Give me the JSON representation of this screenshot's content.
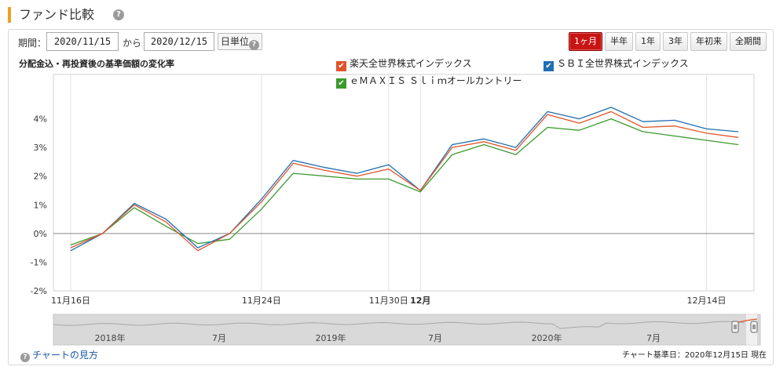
{
  "header": {
    "title": "ファンド比較",
    "help_icon": "?"
  },
  "controls": {
    "period_label": "期間：",
    "date_from": "2020/11/15",
    "separator": "から",
    "date_to": "2020/12/15",
    "unit_label": "日単位",
    "ranges": [
      {
        "label": "1ヶ月",
        "active": true
      },
      {
        "label": "半年",
        "active": false
      },
      {
        "label": "1年",
        "active": false
      },
      {
        "label": "3年",
        "active": false
      },
      {
        "label": "年初来",
        "active": false
      },
      {
        "label": "全期間",
        "active": false
      }
    ]
  },
  "chart_subtitle": "分配金込・再投資後の基準価額の変化率",
  "footer": {
    "help_link": "チャートの見方",
    "reference_date": "チャート基準日：2020年12月15日 現在"
  },
  "navigator": {
    "labels": [
      "2018年",
      "7月",
      "2019年",
      "7月",
      "2020年",
      "7月"
    ]
  },
  "chart_data": {
    "type": "line",
    "x": [
      "2020-11-16",
      "2020-11-17",
      "2020-11-18",
      "2020-11-19",
      "2020-11-20",
      "2020-11-23",
      "2020-11-24",
      "2020-11-25",
      "2020-11-26",
      "2020-11-27",
      "2020-11-30",
      "2020-12-01",
      "2020-12-02",
      "2020-12-03",
      "2020-12-04",
      "2020-12-07",
      "2020-12-08",
      "2020-12-09",
      "2020-12-10",
      "2020-12-11",
      "2020-12-14",
      "2020-12-15"
    ],
    "x_tick_labels": [
      "11月16日",
      "11月24日",
      "11月30日",
      "12月",
      "12月14日"
    ],
    "x_tick_bold": [
      false,
      false,
      false,
      true,
      false
    ],
    "ylim": [
      -2,
      5
    ],
    "y_tick_labels": [
      "-2%",
      "-1%",
      "0%",
      "1%",
      "2%",
      "3%",
      "4%"
    ],
    "y_tick_values": [
      -2,
      -1,
      0,
      1,
      2,
      3,
      4
    ],
    "series": [
      {
        "name": "楽天全世界株式インデックス",
        "color": "#e0542a",
        "values": [
          -0.5,
          0.0,
          1.0,
          0.4,
          -0.6,
          0.0,
          1.1,
          2.45,
          2.2,
          2.0,
          2.25,
          1.5,
          3.0,
          3.2,
          2.9,
          4.15,
          3.85,
          4.25,
          3.7,
          3.75,
          3.5,
          3.35
        ]
      },
      {
        "name": "ＳＢＩ全世界株式インデックス",
        "color": "#1f6fb2",
        "values": [
          -0.6,
          0.0,
          1.05,
          0.5,
          -0.5,
          0.0,
          1.2,
          2.55,
          2.3,
          2.1,
          2.4,
          1.5,
          3.1,
          3.3,
          3.0,
          4.25,
          4.0,
          4.4,
          3.9,
          3.95,
          3.65,
          3.55
        ]
      },
      {
        "name": "ｅＭＡＸＩＳ Ｓｌｉｍオールカントリー",
        "color": "#3b9a2e",
        "values": [
          -0.4,
          0.0,
          0.9,
          0.25,
          -0.35,
          -0.2,
          0.85,
          2.1,
          2.0,
          1.9,
          1.9,
          1.45,
          2.75,
          3.1,
          2.75,
          3.7,
          3.6,
          4.0,
          3.55,
          3.4,
          3.25,
          3.1
        ]
      }
    ]
  }
}
